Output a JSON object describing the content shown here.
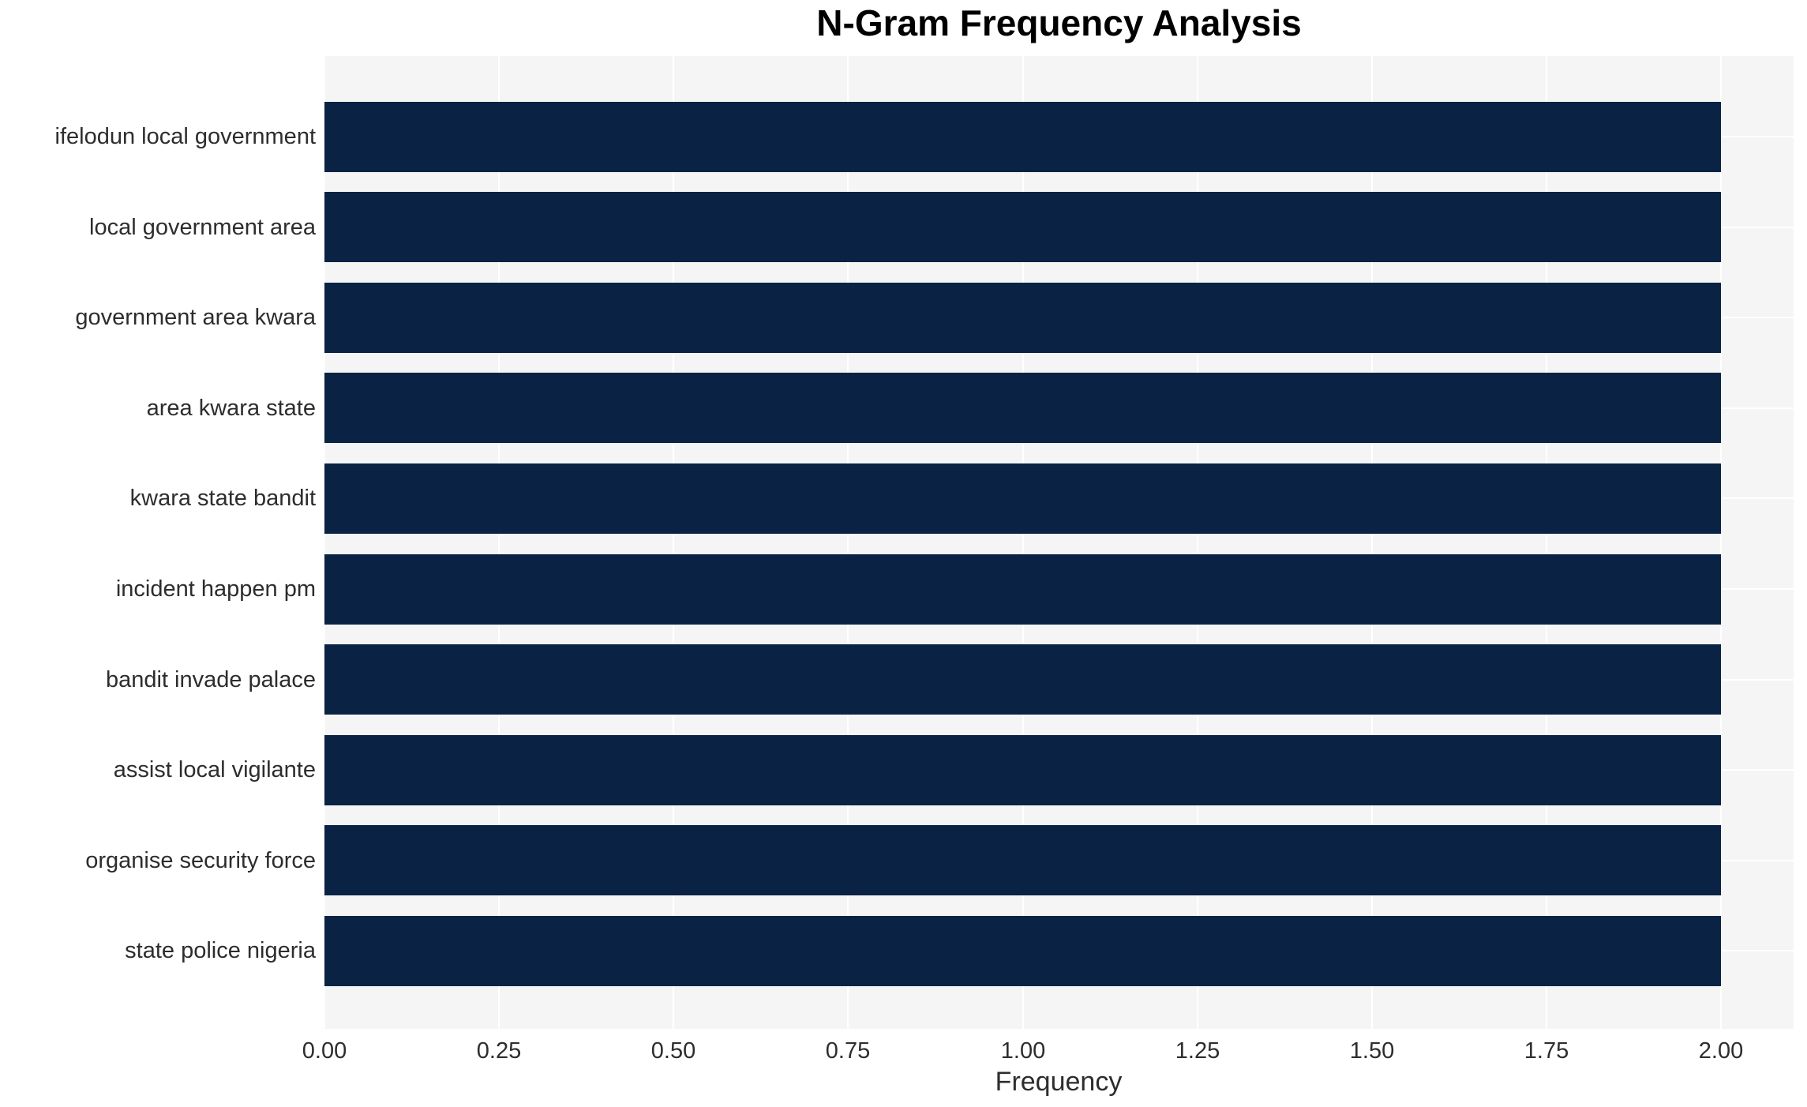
{
  "chart_data": {
    "type": "bar",
    "orientation": "horizontal",
    "title": "N-Gram Frequency Analysis",
    "xlabel": "Frequency",
    "ylabel": "",
    "categories": [
      "ifelodun local government",
      "local government area",
      "government area kwara",
      "area kwara state",
      "kwara state bandit",
      "incident happen pm",
      "bandit invade palace",
      "assist local vigilante",
      "organise security force",
      "state police nigeria"
    ],
    "values": [
      2,
      2,
      2,
      2,
      2,
      2,
      2,
      2,
      2,
      2
    ],
    "x_ticks": [
      "0.00",
      "0.25",
      "0.50",
      "0.75",
      "1.00",
      "1.25",
      "1.50",
      "1.75",
      "2.00"
    ],
    "x_tick_values": [
      0.0,
      0.25,
      0.5,
      0.75,
      1.0,
      1.25,
      1.5,
      1.75,
      2.0
    ],
    "xlim": [
      0,
      2.1
    ],
    "grid": "white gridlines on light-gray plot background, vertical at x ticks and horizontal at category centers",
    "legend": false,
    "colors": {
      "bar": "#0a2344",
      "plot_background": "#f5f5f6",
      "gridline": "#ffffff",
      "tick_text": "#2d2d2d",
      "title_text": "#000000"
    }
  }
}
